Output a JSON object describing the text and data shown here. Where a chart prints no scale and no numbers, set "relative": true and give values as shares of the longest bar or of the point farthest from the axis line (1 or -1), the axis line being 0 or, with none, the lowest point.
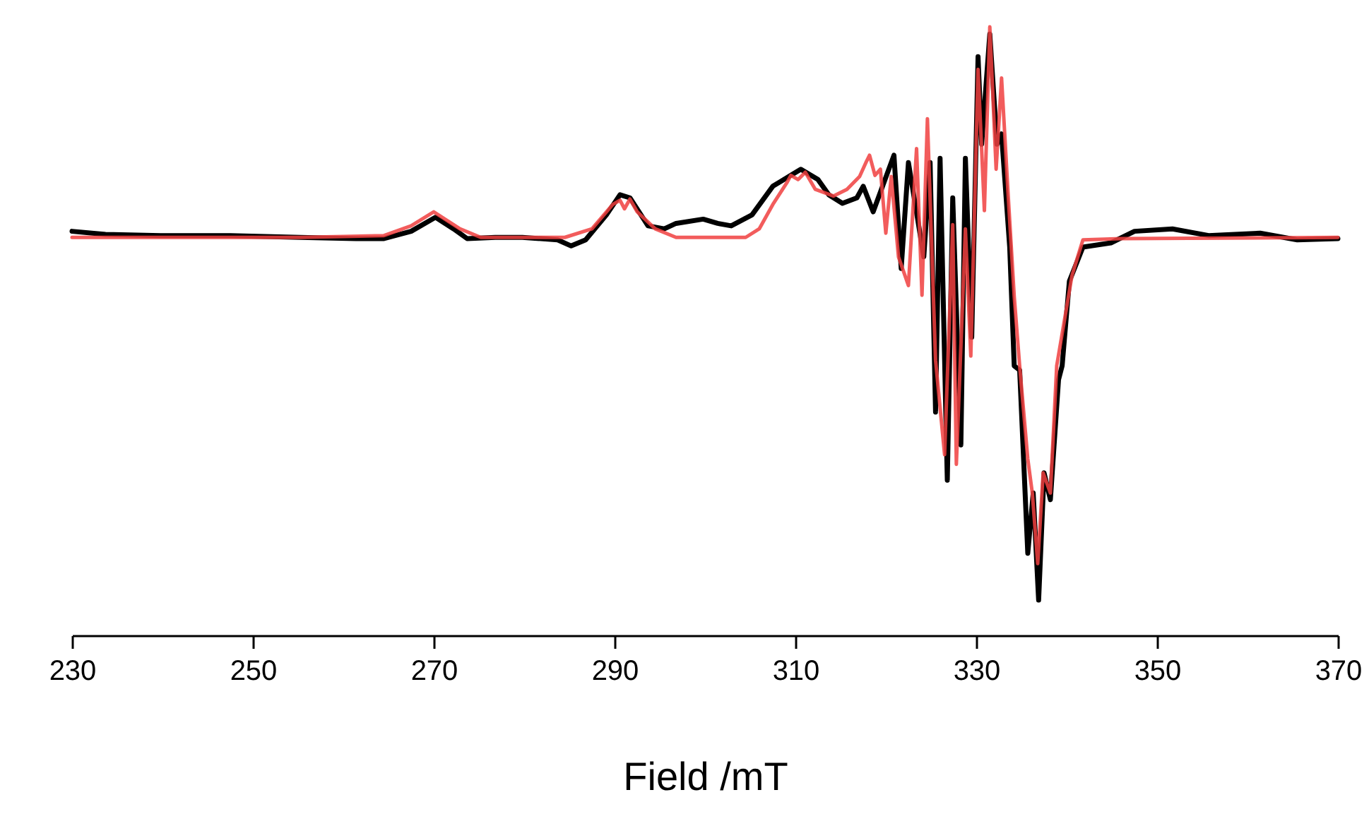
{
  "chart_data": {
    "type": "line",
    "relative": true,
    "xlabel": "Field /mT",
    "xlim": [
      230,
      370
    ],
    "xticks": [
      230,
      250,
      270,
      290,
      310,
      330,
      350,
      370
    ],
    "grid": false,
    "marker": "none",
    "line_style": "solid",
    "series": [
      {
        "color": "#000000",
        "x": [
          230.0,
          233.7,
          239.8,
          247.5,
          255.2,
          261.4,
          264.5,
          267.5,
          270.2,
          272.2,
          273.7,
          276.8,
          279.8,
          283.7,
          285.2,
          286.8,
          289.1,
          290.6,
          291.7,
          293.7,
          295.5,
          296.8,
          299.8,
          301.4,
          302.9,
          305.2,
          307.5,
          309.5,
          310.6,
          312.5,
          313.7,
          315.2,
          316.8,
          317.5,
          318.6,
          320.9,
          321.7,
          322.5,
          324.2,
          324.9,
          325.5,
          326.0,
          326.8,
          327.4,
          328.3,
          328.8,
          329.5,
          330.2,
          330.6,
          331.5,
          332.3,
          332.8,
          333.7,
          334.2,
          334.8,
          335.7,
          336.3,
          336.9,
          337.5,
          338.2,
          339.1,
          339.5,
          340.3,
          341.8,
          344.9,
          347.5,
          351.7,
          355.7,
          361.4,
          365.5,
          370.0
        ],
        "values": [
          0.664,
          0.659,
          0.657,
          0.657,
          0.654,
          0.652,
          0.652,
          0.664,
          0.687,
          0.668,
          0.652,
          0.654,
          0.654,
          0.65,
          0.64,
          0.65,
          0.691,
          0.724,
          0.719,
          0.673,
          0.668,
          0.677,
          0.684,
          0.677,
          0.673,
          0.691,
          0.738,
          0.756,
          0.766,
          0.749,
          0.724,
          0.71,
          0.719,
          0.738,
          0.696,
          0.789,
          0.603,
          0.777,
          0.622,
          0.777,
          0.367,
          0.784,
          0.255,
          0.719,
          0.313,
          0.784,
          0.49,
          0.951,
          0.807,
          0.988,
          0.807,
          0.824,
          0.638,
          0.443,
          0.436,
          0.135,
          0.234,
          0.058,
          0.267,
          0.223,
          0.42,
          0.443,
          0.582,
          0.638,
          0.645,
          0.664,
          0.668,
          0.657,
          0.661,
          0.65,
          0.652
        ]
      },
      {
        "color": "#f04040",
        "x": [
          230.0,
          255.2,
          264.5,
          267.5,
          270.0,
          272.9,
          275.2,
          284.5,
          287.5,
          289.8,
          290.6,
          291.1,
          291.7,
          292.5,
          294.5,
          296.8,
          304.5,
          306.0,
          307.5,
          309.1,
          309.5,
          310.3,
          311.1,
          312.2,
          314.2,
          315.7,
          317.1,
          317.8,
          318.2,
          318.8,
          319.4,
          320.0,
          320.6,
          321.4,
          322.5,
          323.4,
          324.0,
          324.6,
          325.5,
          326.5,
          327.4,
          327.8,
          328.8,
          329.4,
          330.2,
          330.9,
          331.5,
          332.2,
          332.8,
          333.5,
          334.2,
          334.8,
          335.7,
          336.2,
          336.8,
          337.4,
          338.2,
          338.9,
          340.6,
          341.8,
          346.0,
          370.0
        ],
        "values": [
          0.654,
          0.654,
          0.657,
          0.673,
          0.696,
          0.668,
          0.654,
          0.654,
          0.668,
          0.708,
          0.715,
          0.701,
          0.717,
          0.696,
          0.668,
          0.654,
          0.654,
          0.668,
          0.708,
          0.745,
          0.756,
          0.749,
          0.761,
          0.733,
          0.722,
          0.733,
          0.754,
          0.777,
          0.789,
          0.756,
          0.766,
          0.661,
          0.754,
          0.622,
          0.575,
          0.8,
          0.559,
          0.849,
          0.452,
          0.297,
          0.675,
          0.281,
          0.668,
          0.459,
          0.93,
          0.698,
          1.0,
          0.766,
          0.916,
          0.731,
          0.557,
          0.443,
          0.29,
          0.234,
          0.118,
          0.267,
          0.234,
          0.443,
          0.592,
          0.65,
          0.652,
          0.654
        ]
      }
    ]
  }
}
